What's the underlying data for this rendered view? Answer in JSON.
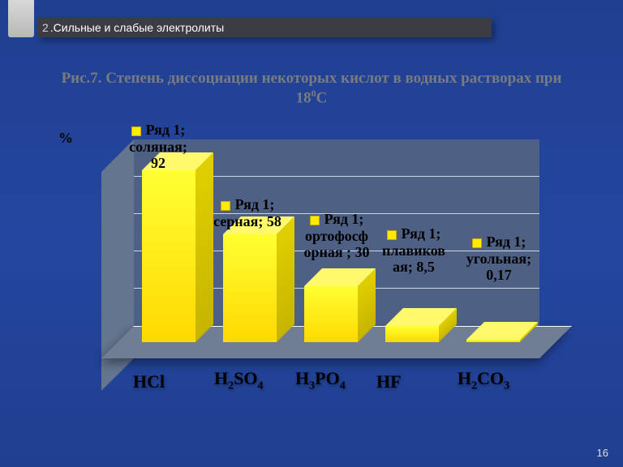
{
  "section": {
    "number": "2",
    "title": ".Сильные и слабые электролиты"
  },
  "chart": {
    "type": "bar3d",
    "title_prefix": "Рис.7. Степень диссоциации некоторых кислот в водных растворах при 18",
    "title_sup": "0",
    "title_suffix": "С",
    "ylabel": "%",
    "ylim": [
      0,
      100
    ],
    "grid_step": 20,
    "categories": [
      "HCl",
      "H2SO4",
      "H3PO4",
      "HF",
      "H2CO3"
    ],
    "series_name": "Ряд 1",
    "values": [
      92,
      58,
      30,
      8.5,
      0.17
    ],
    "bar_color": "#ffeb00",
    "bar_shade": "#d6c200",
    "bar_highlight": "#fff96b",
    "backwall_color": "#4e6084",
    "floor_color": "#6f7e94",
    "sidewall_color": "#647590",
    "grid_color": "#cfd6e2",
    "label_fontsize": 18,
    "axis_fontsize": 22,
    "data_labels": [
      {
        "line1": "Ряд 1;",
        "line2": "соляная;",
        "line3": "92"
      },
      {
        "line1": "Ряд 1;",
        "line2": "серная; 58",
        "line3": ""
      },
      {
        "line1": "Ряд 1;",
        "line2": "ортофосф",
        "line3": "орная ; 30"
      },
      {
        "line1": "Ряд 1;",
        "line2": "плавиков",
        "line3": "ая; 8,5"
      },
      {
        "line1": "Ряд 1;",
        "line2": "угольная;",
        "line3": "0,17"
      }
    ]
  },
  "page_number": "16"
}
